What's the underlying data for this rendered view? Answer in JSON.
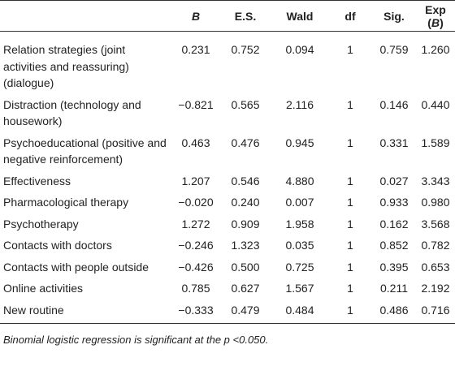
{
  "table": {
    "header": [
      "B",
      "E.S.",
      "Wald",
      "df",
      "Sig.",
      [
        "Exp (",
        "B",
        ")"
      ]
    ],
    "rows": [
      [
        "Relation strategies (joint activities and reassuring) (dialogue)",
        "0.231",
        "0.752",
        "0.094",
        "1",
        "0.759",
        "1.260"
      ],
      [
        "Distraction (technology and housework)",
        "−0.821",
        "0.565",
        "2.116",
        "1",
        "0.146",
        "0.440"
      ],
      [
        "Psychoeducational (positive and negative reinforcement)",
        "0.463",
        "0.476",
        "0.945",
        "1",
        "0.331",
        "1.589"
      ],
      [
        "Effectiveness",
        "1.207",
        "0.546",
        "4.880",
        "1",
        "0.027",
        "3.343"
      ],
      [
        "Pharmacological therapy",
        "−0.020",
        "0.240",
        "0.007",
        "1",
        "0.933",
        "0.980"
      ],
      [
        "Psychotherapy",
        "1.272",
        "0.909",
        "1.958",
        "1",
        "0.162",
        "3.568"
      ],
      [
        "Contacts with doctors",
        "−0.246",
        "1.323",
        "0.035",
        "1",
        "0.852",
        "0.782"
      ],
      [
        "Contacts with people outside",
        "−0.426",
        "0.500",
        "0.725",
        "1",
        "0.395",
        "0.653"
      ],
      [
        "Online activities",
        "0.785",
        "0.627",
        "1.567",
        "1",
        "0.211",
        "2.192"
      ],
      [
        "New routine",
        "−0.333",
        "0.479",
        "0.484",
        "1",
        "0.486",
        "0.716"
      ]
    ]
  },
  "footnote": "Binomial logistic regression is significant at the p <0.050."
}
